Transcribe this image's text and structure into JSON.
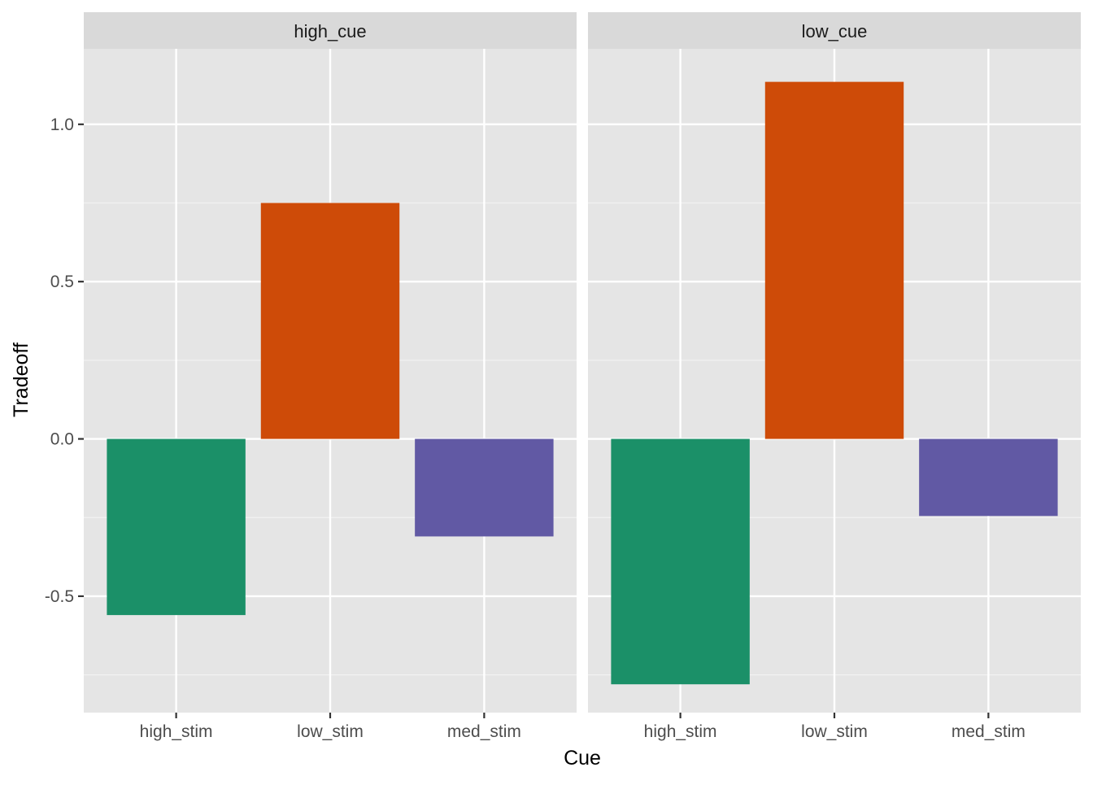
{
  "chart_data": {
    "type": "bar",
    "xlabel": "Cue",
    "ylabel": "Tradeoff",
    "ylim": [
      -0.87,
      1.24
    ],
    "yticks": [
      -0.5,
      0.0,
      0.5,
      1.0
    ],
    "ytick_labels": [
      "-0.5",
      "0.0",
      "0.5",
      "1.0"
    ],
    "grid": true,
    "legend": "none",
    "categories": [
      "high_stim",
      "low_stim",
      "med_stim"
    ],
    "colors": {
      "high_stim": "#1B9068",
      "low_stim": "#CE4B08",
      "med_stim": "#6159A4"
    },
    "panels": [
      {
        "name": "high_cue",
        "values": [
          -0.56,
          0.75,
          -0.31
        ]
      },
      {
        "name": "low_cue",
        "values": [
          -0.78,
          1.135,
          -0.245
        ]
      }
    ]
  }
}
